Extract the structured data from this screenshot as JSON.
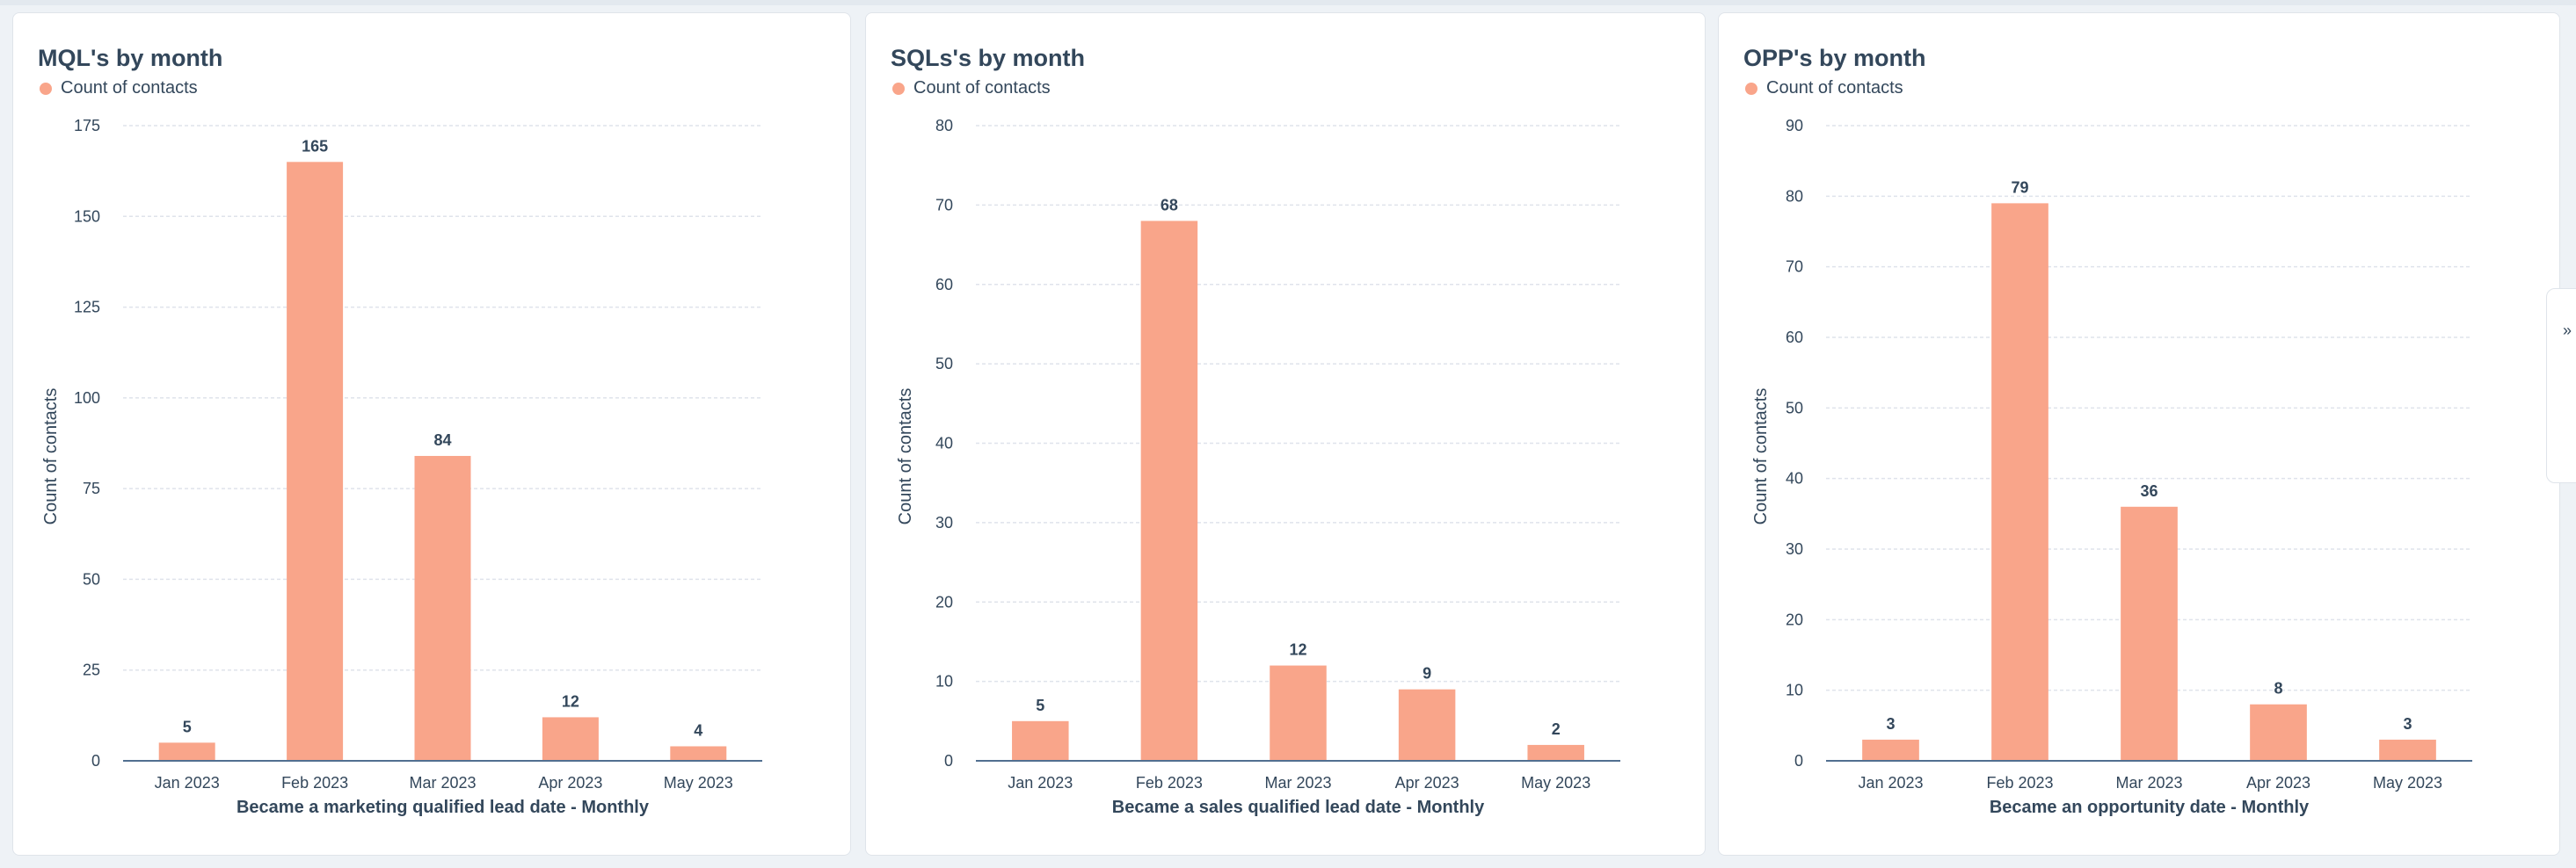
{
  "chart_data": [
    {
      "type": "bar",
      "title": "MQL's by month",
      "legend": [
        "Count of contacts"
      ],
      "legend_position": "top-left",
      "xlabel": "Became a marketing qualified lead date - Monthly",
      "ylabel": "Count of contacts",
      "categories": [
        "Jan 2023",
        "Feb 2023",
        "Mar 2023",
        "Apr 2023",
        "May 2023"
      ],
      "values": [
        5,
        165,
        84,
        12,
        4
      ],
      "data_labels": [
        "5",
        "165",
        "84",
        "12",
        "4"
      ],
      "ylim": [
        0,
        175
      ],
      "yticks": [
        0,
        25,
        50,
        75,
        100,
        125,
        150,
        175
      ],
      "ytick_labels": [
        "0",
        "25",
        "50",
        "75",
        "100",
        "125",
        "150",
        "175"
      ],
      "grid": true,
      "color": "#f9a58a"
    },
    {
      "type": "bar",
      "title": "SQLs's by month",
      "legend": [
        "Count of contacts"
      ],
      "legend_position": "top-left",
      "xlabel": "Became a sales qualified lead date - Monthly",
      "ylabel": "Count of contacts",
      "categories": [
        "Jan 2023",
        "Feb 2023",
        "Mar 2023",
        "Apr 2023",
        "May 2023"
      ],
      "values": [
        5,
        68,
        12,
        9,
        2
      ],
      "data_labels": [
        "5",
        "68",
        "12",
        "9",
        "2"
      ],
      "ylim": [
        0,
        80
      ],
      "yticks": [
        0,
        10,
        20,
        30,
        40,
        50,
        60,
        70,
        80
      ],
      "ytick_labels": [
        "0",
        "10",
        "20",
        "30",
        "40",
        "50",
        "60",
        "70",
        "80"
      ],
      "grid": true,
      "color": "#f9a58a"
    },
    {
      "type": "bar",
      "title": "OPP's by month",
      "legend": [
        "Count of contacts"
      ],
      "legend_position": "top-left",
      "xlabel": "Became an opportunity date - Monthly",
      "ylabel": "Count of contacts",
      "categories": [
        "Jan 2023",
        "Feb 2023",
        "Mar 2023",
        "Apr 2023",
        "May 2023"
      ],
      "values": [
        3,
        79,
        36,
        8,
        3
      ],
      "data_labels": [
        "3",
        "79",
        "36",
        "8",
        "3"
      ],
      "ylim": [
        0,
        90
      ],
      "yticks": [
        0,
        10,
        20,
        30,
        40,
        50,
        60,
        70,
        80,
        90
      ],
      "ytick_labels": [
        "0",
        "10",
        "20",
        "30",
        "40",
        "50",
        "60",
        "70",
        "80",
        "90"
      ],
      "grid": true,
      "color": "#f9a58a"
    }
  ],
  "side_tab": {
    "icon": "double-chevron-icon",
    "glyph": "»"
  },
  "colors": {
    "bar": "#f9a58a",
    "text": "#33475b",
    "grid": "#dfe3eb",
    "axis": "#516f90"
  }
}
